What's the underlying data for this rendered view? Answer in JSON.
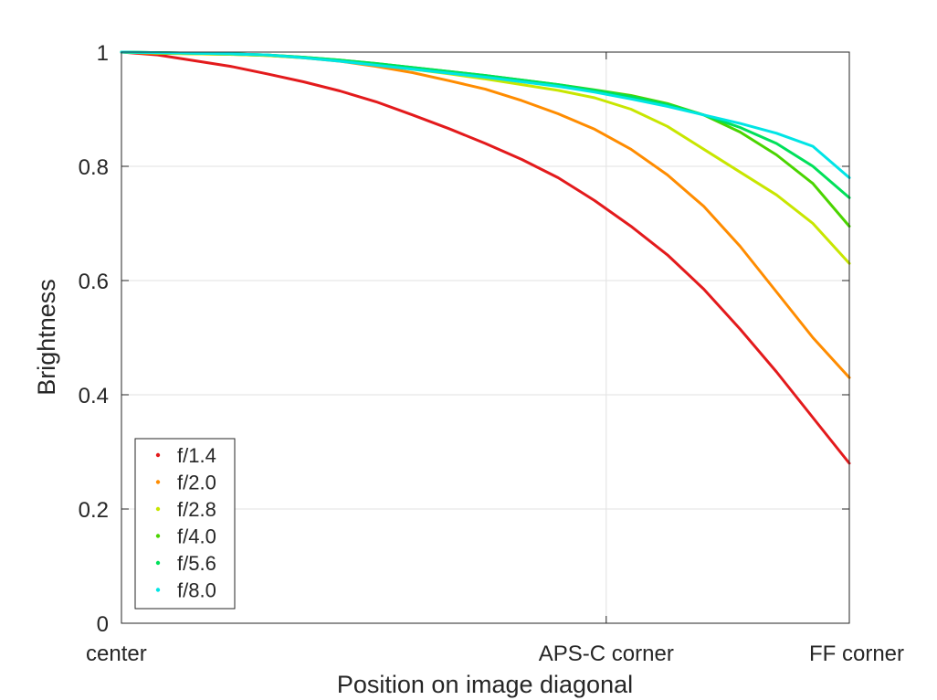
{
  "chart_data": {
    "type": "scatter",
    "title": "",
    "xlabel": "Position on image diagonal",
    "ylabel": "Brightness",
    "xlim": [
      0,
      1
    ],
    "ylim": [
      0,
      1
    ],
    "grid": true,
    "legend_position": "bottom-left",
    "x_ticks": [
      {
        "value": 0,
        "label": "center"
      },
      {
        "value": 0.666,
        "label": "APS-C corner"
      },
      {
        "value": 1,
        "label": "FF corner"
      }
    ],
    "y_ticks": [
      {
        "value": 0,
        "label": "0"
      },
      {
        "value": 0.2,
        "label": "0.2"
      },
      {
        "value": 0.4,
        "label": "0.4"
      },
      {
        "value": 0.6,
        "label": "0.6"
      },
      {
        "value": 0.8,
        "label": "0.8"
      },
      {
        "value": 1,
        "label": "1"
      }
    ],
    "series": [
      {
        "name": "f/1.4",
        "color": "#e31a1c",
        "x": [
          0,
          0.05,
          0.1,
          0.15,
          0.2,
          0.25,
          0.3,
          0.35,
          0.4,
          0.45,
          0.5,
          0.55,
          0.6,
          0.65,
          0.7,
          0.75,
          0.8,
          0.85,
          0.9,
          0.95,
          1.0
        ],
        "y": [
          1.0,
          0.995,
          0.985,
          0.975,
          0.962,
          0.948,
          0.932,
          0.913,
          0.89,
          0.866,
          0.84,
          0.812,
          0.78,
          0.74,
          0.695,
          0.645,
          0.585,
          0.515,
          0.44,
          0.36,
          0.28
        ]
      },
      {
        "name": "f/2.0",
        "color": "#ff8c00",
        "x": [
          0,
          0.05,
          0.1,
          0.15,
          0.2,
          0.25,
          0.3,
          0.35,
          0.4,
          0.45,
          0.5,
          0.55,
          0.6,
          0.65,
          0.7,
          0.75,
          0.8,
          0.85,
          0.9,
          0.95,
          1.0
        ],
        "y": [
          1.0,
          0.998,
          0.997,
          0.996,
          0.994,
          0.99,
          0.984,
          0.975,
          0.964,
          0.95,
          0.935,
          0.915,
          0.892,
          0.865,
          0.83,
          0.785,
          0.73,
          0.66,
          0.58,
          0.5,
          0.43
        ]
      },
      {
        "name": "f/2.8",
        "color": "#c8e600",
        "x": [
          0,
          0.05,
          0.1,
          0.15,
          0.2,
          0.25,
          0.3,
          0.35,
          0.4,
          0.45,
          0.5,
          0.55,
          0.6,
          0.65,
          0.7,
          0.75,
          0.8,
          0.85,
          0.9,
          0.95,
          1.0
        ],
        "y": [
          1.0,
          0.998,
          0.997,
          0.996,
          0.994,
          0.99,
          0.985,
          0.978,
          0.97,
          0.962,
          0.953,
          0.943,
          0.933,
          0.92,
          0.9,
          0.87,
          0.83,
          0.79,
          0.75,
          0.7,
          0.63
        ]
      },
      {
        "name": "f/4.0",
        "color": "#4ad400",
        "x": [
          0,
          0.05,
          0.1,
          0.15,
          0.2,
          0.25,
          0.3,
          0.35,
          0.4,
          0.45,
          0.5,
          0.55,
          0.6,
          0.65,
          0.7,
          0.75,
          0.8,
          0.85,
          0.9,
          0.95,
          1.0
        ],
        "y": [
          1.0,
          0.999,
          0.998,
          0.997,
          0.995,
          0.991,
          0.986,
          0.98,
          0.973,
          0.966,
          0.959,
          0.951,
          0.943,
          0.934,
          0.924,
          0.91,
          0.89,
          0.86,
          0.82,
          0.77,
          0.695
        ]
      },
      {
        "name": "f/5.6",
        "color": "#00e05a",
        "x": [
          0,
          0.05,
          0.1,
          0.15,
          0.2,
          0.25,
          0.3,
          0.35,
          0.4,
          0.45,
          0.5,
          0.55,
          0.6,
          0.65,
          0.7,
          0.75,
          0.8,
          0.85,
          0.9,
          0.95,
          1.0
        ],
        "y": [
          1.0,
          0.999,
          0.998,
          0.997,
          0.995,
          0.991,
          0.986,
          0.98,
          0.973,
          0.966,
          0.959,
          0.951,
          0.943,
          0.933,
          0.922,
          0.908,
          0.89,
          0.868,
          0.84,
          0.8,
          0.745
        ]
      },
      {
        "name": "f/8.0",
        "color": "#00e5e5",
        "x": [
          0,
          0.05,
          0.1,
          0.15,
          0.2,
          0.25,
          0.3,
          0.35,
          0.4,
          0.45,
          0.5,
          0.55,
          0.6,
          0.65,
          0.7,
          0.75,
          0.8,
          0.85,
          0.9,
          0.95,
          1.0
        ],
        "y": [
          1.0,
          0.999,
          0.998,
          0.997,
          0.995,
          0.99,
          0.984,
          0.977,
          0.97,
          0.963,
          0.956,
          0.948,
          0.94,
          0.93,
          0.918,
          0.905,
          0.89,
          0.875,
          0.858,
          0.835,
          0.78
        ]
      }
    ]
  }
}
